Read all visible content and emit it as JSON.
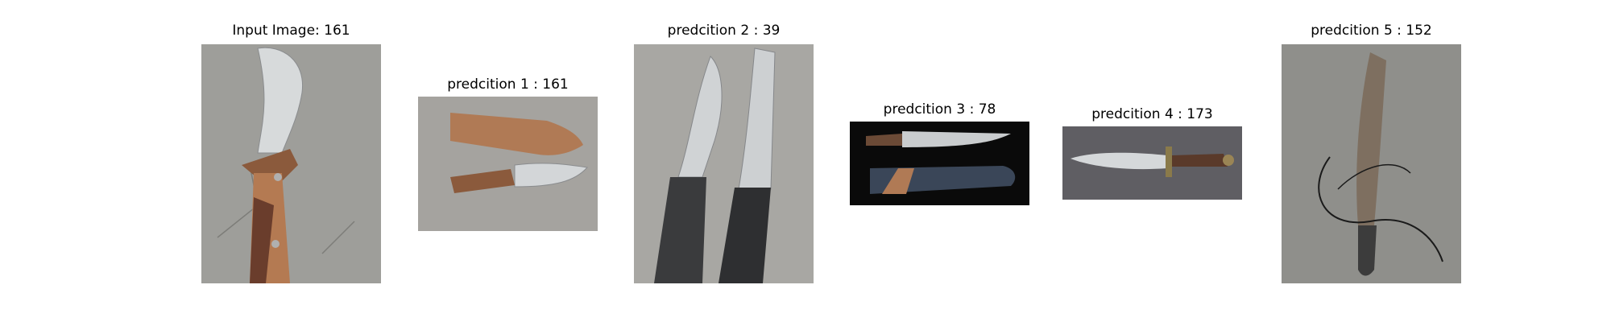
{
  "figure": {
    "panels": [
      {
        "title": "Input Image: 161",
        "depicts": "knife-icon"
      },
      {
        "title": "predcition 1 : 161",
        "depicts": "knife-icon"
      },
      {
        "title": "predcition 2 : 39",
        "depicts": "knife-icon"
      },
      {
        "title": "predcition 3 : 78",
        "depicts": "knife-icon"
      },
      {
        "title": "predcition 4 : 173",
        "depicts": "knife-icon"
      },
      {
        "title": "predcition 5 : 152",
        "depicts": "knife-icon"
      }
    ]
  },
  "colors": {
    "concrete": "#9e9e9a",
    "dark_background": "#0a0a0a",
    "gray_background": "#5f5e63",
    "blade": "#cfd2d4",
    "wood": "#9a6a4a",
    "leather": "#b07a55"
  }
}
